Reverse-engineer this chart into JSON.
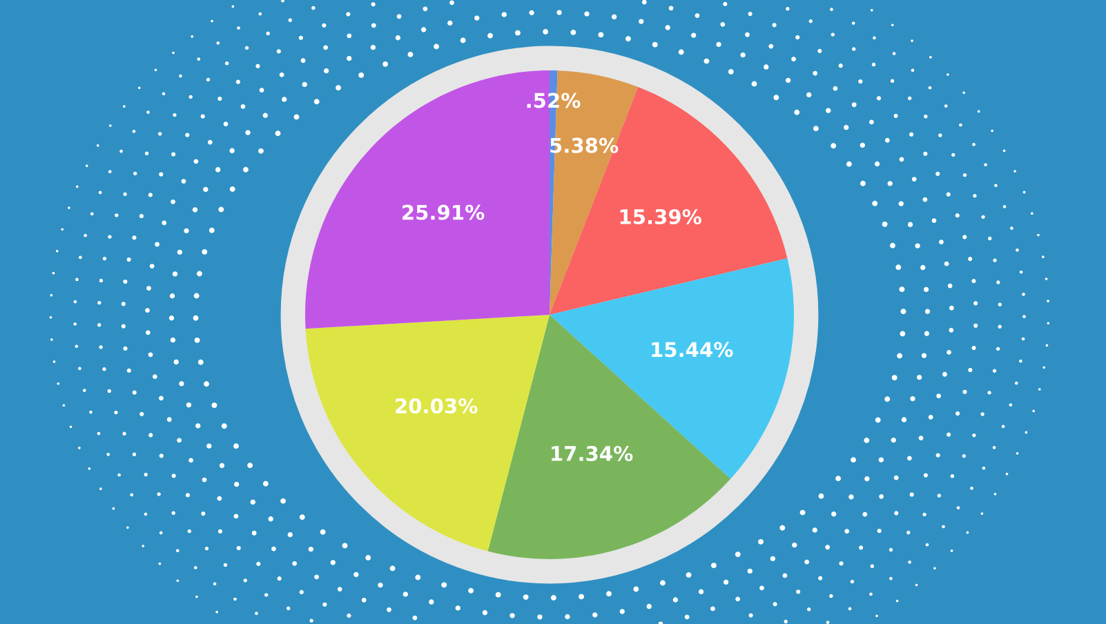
{
  "chart_data": {
    "type": "pie",
    "categories": [
      null,
      null,
      null,
      null,
      null,
      null,
      null
    ],
    "values": [
      0.52,
      5.38,
      15.39,
      15.44,
      17.34,
      20.03,
      25.91
    ],
    "colors": [
      "#5b8de6",
      "#dc9a4e",
      "#fb6262",
      "#47c8f2",
      "#7ab55c",
      "#dde544",
      "#c156e6"
    ],
    "value_labels": [
      ".52%",
      "5.38%",
      "15.39%",
      "15.44%",
      "17.34%",
      "20.03%",
      "25.91%"
    ],
    "legend": false
  }
}
